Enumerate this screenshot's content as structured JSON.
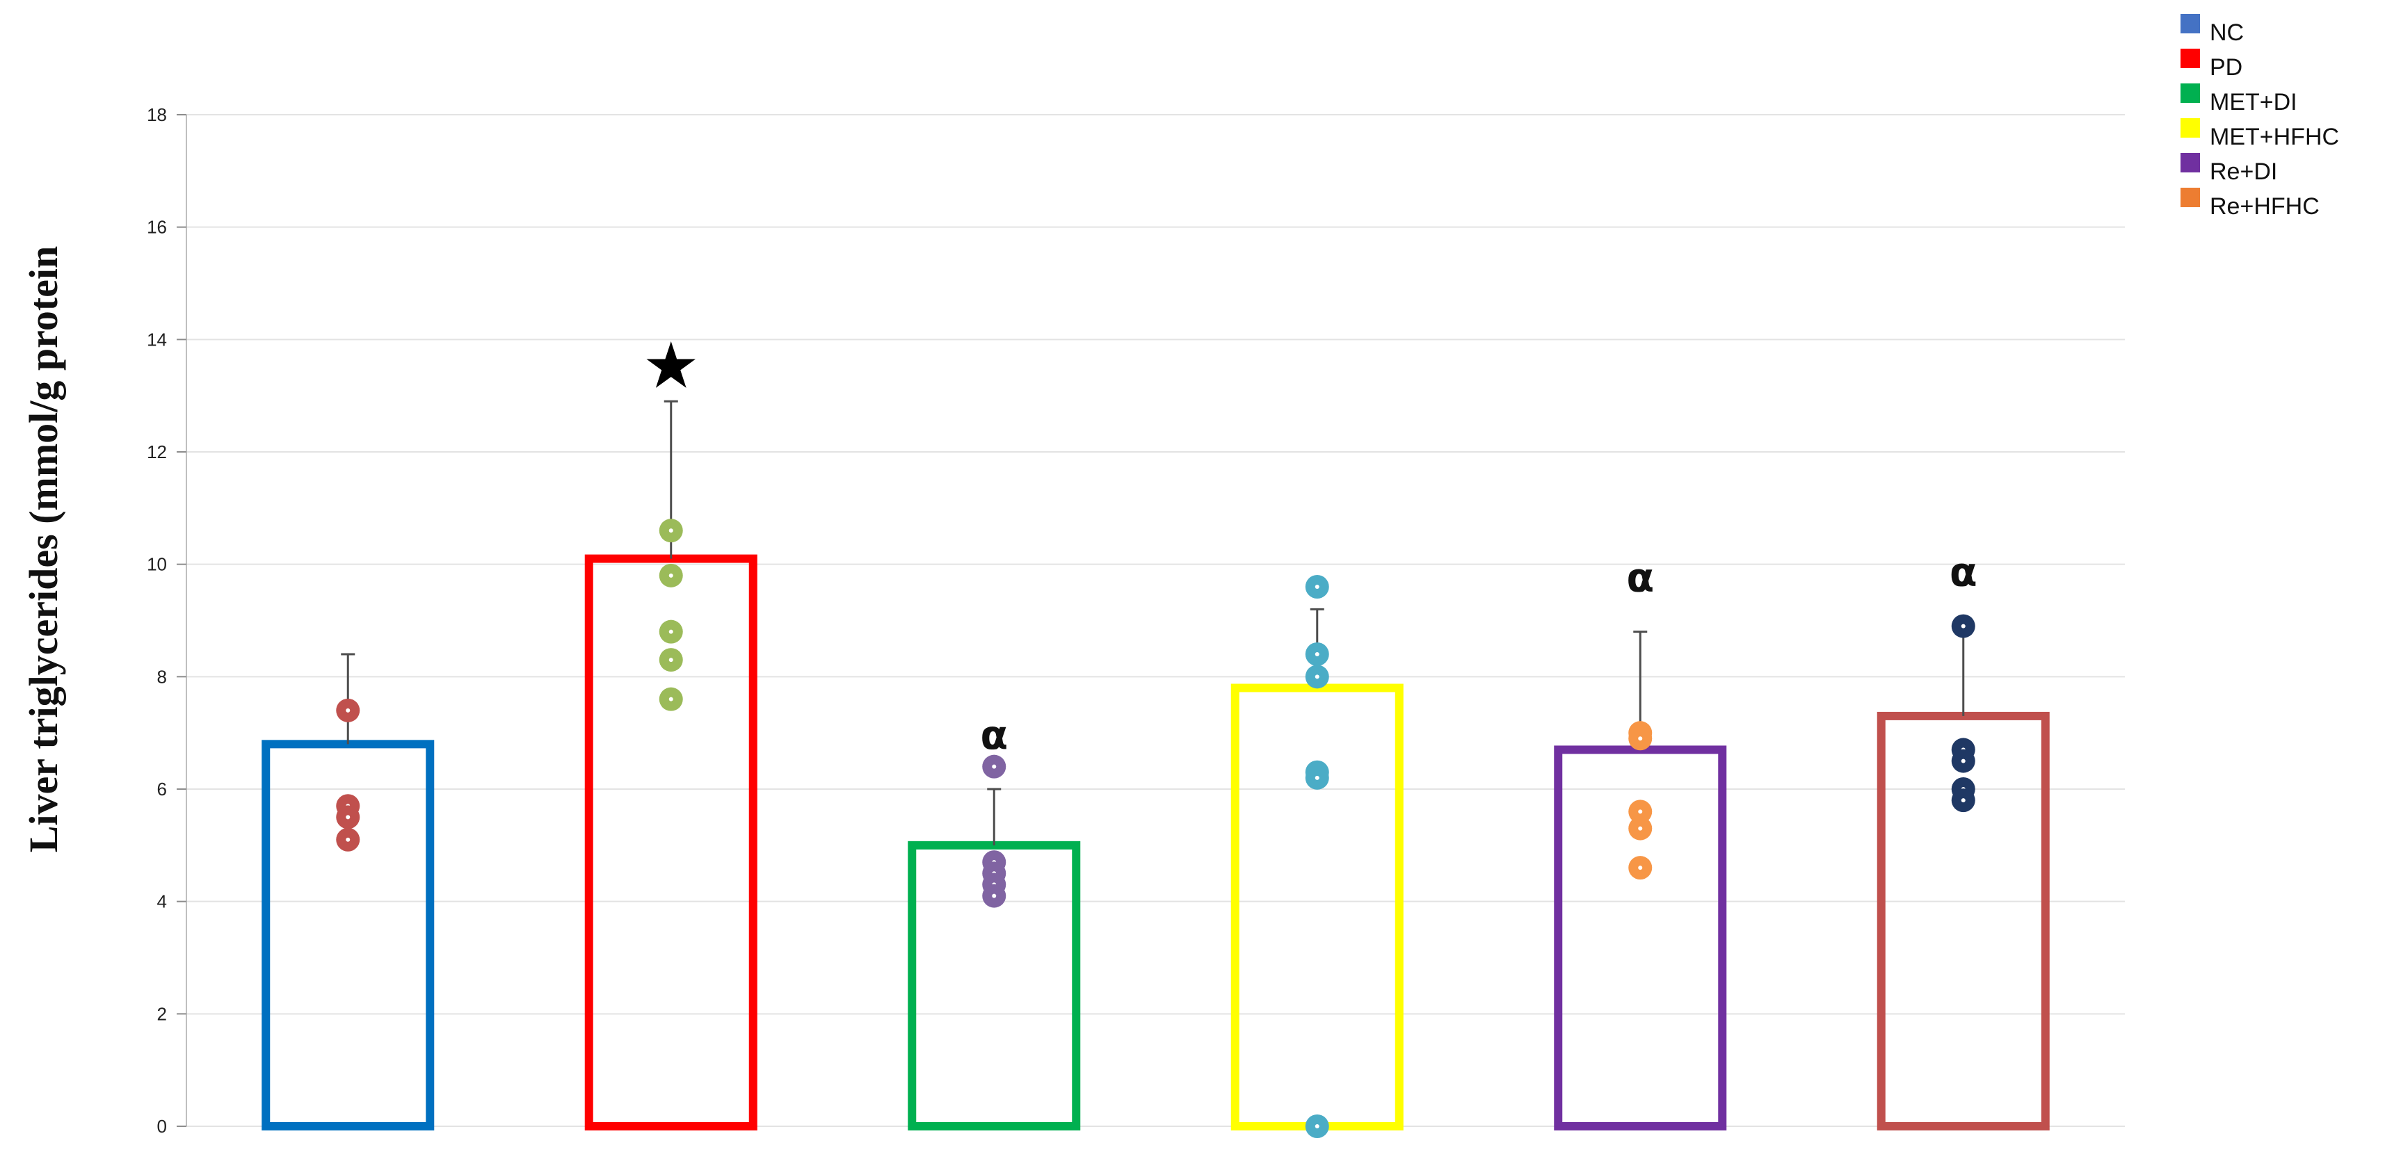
{
  "chart_data": {
    "type": "bar",
    "ylabel": "Liver triglycerides (mmol/g protein",
    "ylim": [
      0,
      18
    ],
    "yticks": [
      0,
      2,
      4,
      6,
      8,
      10,
      12,
      14,
      16,
      18
    ],
    "grid": true,
    "legend_position": "top-right",
    "series": [
      {
        "name": "NC",
        "legend_color": "#4472C4",
        "bar_color": "#0070C0",
        "dot_color": "#C0504D",
        "value": 6.8,
        "sd_upper": 8.4,
        "points": [
          7.4,
          5.7,
          5.5,
          5.1
        ],
        "annotation": ""
      },
      {
        "name": "PD",
        "legend_color": "#FF0000",
        "bar_color": "#FF0000",
        "dot_color": "#9BBB59",
        "value": 10.1,
        "sd_upper": 12.9,
        "points": [
          10.6,
          9.8,
          8.8,
          8.3,
          7.6
        ],
        "annotation": "★"
      },
      {
        "name": "MET+DI",
        "legend_color": "#00B050",
        "bar_color": "#00B050",
        "dot_color": "#8064A2",
        "value": 5.0,
        "sd_upper": 6.0,
        "points": [
          6.4,
          4.7,
          4.5,
          4.3,
          4.1
        ],
        "annotation": "α"
      },
      {
        "name": "MET+HFHC",
        "legend_color": "#FFFF00",
        "bar_color": "#FFFF00",
        "dot_color": "#4BACC6",
        "value": 7.8,
        "sd_upper": 9.2,
        "points": [
          9.6,
          8.4,
          8.0,
          6.3,
          6.2,
          0.0
        ],
        "annotation": ""
      },
      {
        "name": "Re+DI",
        "legend_color": "#7030A0",
        "bar_color": "#7030A0",
        "dot_color": "#F79646",
        "value": 6.7,
        "sd_upper": 8.8,
        "points": [
          7.0,
          6.9,
          5.6,
          5.3,
          4.6
        ],
        "annotation": "α"
      },
      {
        "name": "Re+HFHC",
        "legend_color": "#ED7D31",
        "bar_color": "#C0504D",
        "dot_color": "#1F3864",
        "value": 7.3,
        "sd_upper": 8.9,
        "points": [
          8.9,
          6.7,
          6.5,
          6.0,
          5.8
        ],
        "annotation": "α"
      }
    ]
  }
}
